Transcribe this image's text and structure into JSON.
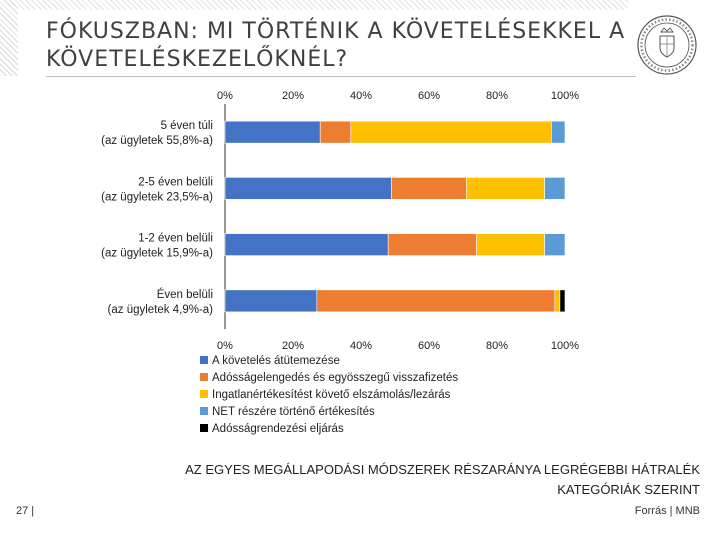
{
  "slide": {
    "title": "FÓKUSZBAN: MI TÖRTÉNIK A KÖVETELÉSEKKEL A KÖVETELÉSKEZELŐKNÉL?",
    "caption_line1": "AZ EGYES MEGÁLLAPODÁSI MÓDSZEREK RÉSZARÁNYA LEGRÉGEBBI HÁTRALÉK",
    "caption_line2": "KATEGÓRIÁK SZERINT",
    "page_number": "27 |",
    "source": "Forrás | MNB",
    "logo_icon": "mnb-seal-icon"
  },
  "chart_data": {
    "type": "bar",
    "orientation": "horizontal",
    "stacked": true,
    "categories": [
      {
        "line1": "5 éven túli",
        "line2": "(az ügyletek 55,8%-a)"
      },
      {
        "line1": "2-5 éven belüli",
        "line2": "(az ügyletek 23,5%-a)"
      },
      {
        "line1": "1-2 éven belüli",
        "line2": "(az ügyletek 15,9%-a)"
      },
      {
        "line1": "Éven belüli",
        "line2": "(az ügyletek 4,9%-a)"
      }
    ],
    "series": [
      {
        "name": "A követelés átütemezése",
        "color": "#4472C4",
        "values": [
          28,
          49,
          48,
          27
        ]
      },
      {
        "name": "Adósságelengedés és egyösszegű visszafizetés",
        "color": "#ED7D31",
        "values": [
          9,
          22,
          26,
          70
        ]
      },
      {
        "name": "Ingatlanértékesítést követő elszámolás/lezárás",
        "color": "#FFC000",
        "values": [
          59,
          23,
          20,
          1.5
        ]
      },
      {
        "name": "NET részére történő értékesítés",
        "color": "#5B9BD5",
        "values": [
          4,
          6,
          6,
          0
        ]
      },
      {
        "name": "Adósságrendezési eljárás",
        "color": "#000000",
        "values": [
          0,
          0,
          0,
          1.5
        ]
      }
    ],
    "x_ticks": [
      "0%",
      "20%",
      "40%",
      "60%",
      "80%",
      "100%"
    ],
    "xlim": [
      0,
      100
    ],
    "x_axis_position": "top and bottom",
    "grid": false,
    "legend_position": "bottom"
  }
}
